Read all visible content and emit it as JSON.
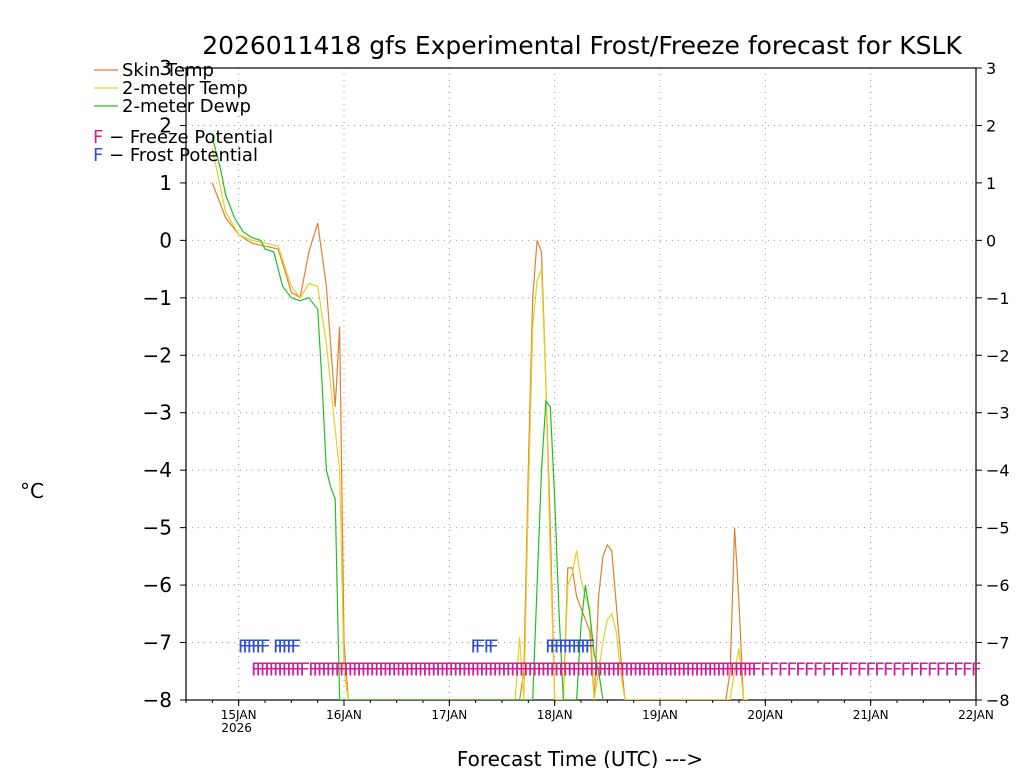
{
  "chart_data": {
    "type": "line",
    "title": "2026011418 gfs Experimental Frost/Freeze forecast for KSLK",
    "xlabel": "Forecast Time (UTC) --->",
    "ylabel": "°C",
    "ylim": [
      -8,
      3
    ],
    "yticks": [
      3,
      2,
      1,
      0,
      -1,
      -2,
      -3,
      -4,
      -5,
      -6,
      -7,
      -8
    ],
    "ytick_labels": [
      "3",
      "2",
      "1",
      "0",
      "−1",
      "−2",
      "−3",
      "−4",
      "−5",
      "−6",
      "−7",
      "−8"
    ],
    "xlim_hours": [
      -6,
      174
    ],
    "xticks": [
      {
        "hour": 6,
        "label": "15JAN",
        "sublabel": "2026"
      },
      {
        "hour": 30,
        "label": "16JAN"
      },
      {
        "hour": 54,
        "label": "17JAN"
      },
      {
        "hour": 78,
        "label": "18JAN"
      },
      {
        "hour": 102,
        "label": "19JAN"
      },
      {
        "hour": 126,
        "label": "20JAN"
      },
      {
        "hour": 150,
        "label": "21JAN"
      },
      {
        "hour": 174,
        "label": "22JAN"
      }
    ],
    "grid": true,
    "legend": [
      {
        "name": "Skin Temp",
        "color": "#e08030"
      },
      {
        "name": "2-meter Temp",
        "color": "#e8d020"
      },
      {
        "name": "2-meter Dewp",
        "color": "#20c020"
      }
    ],
    "flag_legend": [
      {
        "letter": "F",
        "text": " − Freeze Potential",
        "color": "#d02090"
      },
      {
        "letter": "F",
        "text": " − Frost Potential",
        "color": "#3050d0"
      }
    ],
    "series": [
      {
        "name": "Skin Temp",
        "color": "#e08030",
        "x": [
          0,
          3,
          6,
          9,
          12,
          15,
          18,
          20,
          22,
          24,
          26,
          28,
          29,
          30,
          31,
          32,
          33,
          34,
          35,
          36,
          37,
          38,
          39,
          40,
          41,
          42,
          43,
          44,
          45,
          46,
          47,
          48,
          49,
          50,
          51,
          52,
          53,
          54,
          55,
          56,
          57,
          58,
          59,
          60,
          61,
          62,
          63,
          64,
          65,
          66,
          67,
          68,
          69,
          70,
          71,
          72,
          73,
          74,
          75,
          76,
          77,
          78,
          79,
          80,
          81,
          82,
          83,
          84,
          85,
          86,
          87,
          88,
          89,
          90,
          91,
          92,
          93,
          94,
          95,
          96,
          97,
          98,
          99,
          100,
          101,
          102,
          103,
          104,
          105,
          106,
          107,
          108,
          109,
          110,
          111,
          112,
          113,
          114,
          115,
          116,
          117,
          118,
          119,
          120,
          121,
          122
        ],
        "y": [
          1.0,
          0.4,
          0.1,
          -0.05,
          -0.1,
          -0.15,
          -0.9,
          -1.0,
          -0.2,
          0.3,
          -0.8,
          -2.9,
          -1.5,
          -7.0,
          -8,
          -8,
          -8,
          -8,
          -8,
          -8,
          -8,
          -8,
          -8,
          -8,
          -8,
          -8,
          -8,
          -8,
          -8,
          -8,
          -8,
          -8,
          -8,
          -8,
          -8,
          -8,
          -8,
          -8,
          -8,
          -8,
          -8,
          -8,
          -8,
          -8,
          -8,
          -8,
          -8,
          -8,
          -8,
          -8,
          -8,
          -8,
          -8,
          -8,
          -7.5,
          -4.0,
          -1.0,
          0.0,
          -0.2,
          -2.5,
          -5.0,
          -8,
          -8,
          -8,
          -5.7,
          -5.7,
          -6.2,
          -6.4,
          -6.6,
          -6.8,
          -8,
          -6.2,
          -5.5,
          -5.3,
          -5.4,
          -6.3,
          -7.2,
          -8,
          -8,
          -8,
          -8,
          -8,
          -8,
          -8,
          -8,
          -8,
          -8,
          -8,
          -8,
          -8,
          -8,
          -8,
          -8,
          -8,
          -8,
          -8,
          -8,
          -8,
          -8,
          -8,
          -8,
          -7.5,
          -5.0,
          -6.3,
          -8,
          -8
        ]
      },
      {
        "name": "2-meter Temp",
        "color": "#e8d020",
        "x": [
          0,
          3,
          6,
          9,
          12,
          15,
          18,
          20,
          22,
          24,
          26,
          28,
          29,
          30,
          31,
          32,
          33,
          34,
          35,
          36,
          37,
          38,
          39,
          40,
          41,
          42,
          43,
          44,
          45,
          46,
          47,
          48,
          49,
          50,
          51,
          52,
          53,
          54,
          55,
          56,
          57,
          58,
          59,
          60,
          61,
          62,
          63,
          64,
          65,
          66,
          67,
          68,
          69,
          70,
          71,
          72,
          73,
          74,
          75,
          76,
          77,
          78,
          79,
          80,
          81,
          82,
          83,
          84,
          85,
          86,
          87,
          88,
          89,
          90,
          91,
          92,
          93,
          94,
          95,
          96,
          97,
          98,
          99,
          100,
          101,
          102,
          103,
          104,
          105,
          106,
          107,
          108,
          109,
          110,
          111,
          112,
          113,
          114,
          115,
          116,
          117,
          118,
          119,
          120,
          121,
          122
        ],
        "y": [
          1.6,
          0.5,
          0.1,
          0.0,
          -0.05,
          -0.1,
          -0.8,
          -1.0,
          -0.75,
          -0.8,
          -1.8,
          -3.3,
          -4.0,
          -7.5,
          -8,
          -8,
          -8,
          -8,
          -8,
          -8,
          -8,
          -8,
          -8,
          -8,
          -8,
          -8,
          -8,
          -8,
          -8,
          -8,
          -8,
          -8,
          -8,
          -8,
          -8,
          -8,
          -8,
          -8,
          -8,
          -8,
          -8,
          -8,
          -8,
          -8,
          -8,
          -8,
          -8,
          -8,
          -8,
          -8,
          -8,
          -8,
          -8,
          -6.9,
          -8,
          -4.5,
          -1.5,
          -0.7,
          -0.5,
          -2.5,
          -5.5,
          -8,
          -8,
          -8,
          -6.0,
          -5.8,
          -5.4,
          -5.9,
          -6.2,
          -6.4,
          -8,
          -7.5,
          -7.0,
          -6.6,
          -6.5,
          -6.8,
          -7.5,
          -8,
          -8,
          -8,
          -8,
          -8,
          -8,
          -8,
          -8,
          -8,
          -8,
          -8,
          -8,
          -8,
          -8,
          -8,
          -8,
          -8,
          -8,
          -8,
          -8,
          -8,
          -8,
          -8,
          -8,
          -8,
          -7.5,
          -7.1,
          -8,
          -8
        ]
      },
      {
        "name": "2-meter Dewp",
        "color": "#20c020",
        "x": [
          0,
          1,
          2,
          3,
          5,
          7,
          9,
          11,
          12,
          14,
          16,
          18,
          20,
          22,
          24,
          25,
          26,
          27,
          28,
          29,
          30,
          31,
          32,
          33,
          34,
          35,
          36,
          37,
          38,
          39,
          40,
          41,
          42,
          43,
          44,
          45,
          46,
          47,
          48,
          49,
          50,
          51,
          52,
          53,
          54,
          55,
          56,
          57,
          58,
          59,
          60,
          61,
          62,
          63,
          64,
          65,
          66,
          67,
          68,
          69,
          70,
          71,
          72,
          73,
          74,
          75,
          76,
          77,
          78,
          79,
          80,
          81,
          82,
          83,
          84,
          85,
          86,
          87,
          88,
          89
        ],
        "y": [
          1.8,
          1.5,
          1.2,
          0.8,
          0.4,
          0.15,
          0.05,
          0.0,
          -0.15,
          -0.2,
          -0.8,
          -1.0,
          -1.05,
          -1.0,
          -1.2,
          -2.5,
          -4.0,
          -4.3,
          -4.5,
          -8,
          -8,
          -8,
          -8,
          -8,
          -8,
          -8,
          -8,
          -8,
          -8,
          -8,
          -8,
          -8,
          -8,
          -8,
          -8,
          -8,
          -8,
          -8,
          -8,
          -8,
          -8,
          -8,
          -8,
          -8,
          -8,
          -8,
          -8,
          -8,
          -8,
          -8,
          -8,
          -8,
          -8,
          -8,
          -8,
          -8,
          -8,
          -8,
          -8,
          -8,
          -8,
          -8,
          -8,
          -8,
          -6.0,
          -4.0,
          -2.8,
          -2.9,
          -4.5,
          -6.5,
          -8,
          -8,
          -8,
          -8,
          -6.7,
          -6.0,
          -6.5,
          -7.2,
          -7.5,
          -8
        ]
      }
    ],
    "frost_flags": {
      "letter": "F",
      "color": "#3050d0",
      "y": -7.05,
      "hours": [
        7,
        8,
        9,
        10,
        11,
        12,
        15,
        16,
        17,
        18,
        19,
        60,
        61,
        63,
        64,
        77,
        78,
        79,
        80,
        81,
        82,
        83,
        84,
        85,
        86
      ]
    },
    "freeze_flags": {
      "letter": "F",
      "color": "#d02090",
      "y": -7.45,
      "hours_ranges": [
        [
          10,
          21
        ],
        [
          23,
          123
        ]
      ],
      "hours_sparse": [
        124,
        126,
        128,
        130,
        132,
        134,
        136,
        138,
        140,
        142,
        144,
        146,
        148,
        150,
        152,
        154,
        156,
        158,
        160,
        162,
        164,
        166,
        168,
        170,
        172,
        174
      ]
    }
  }
}
